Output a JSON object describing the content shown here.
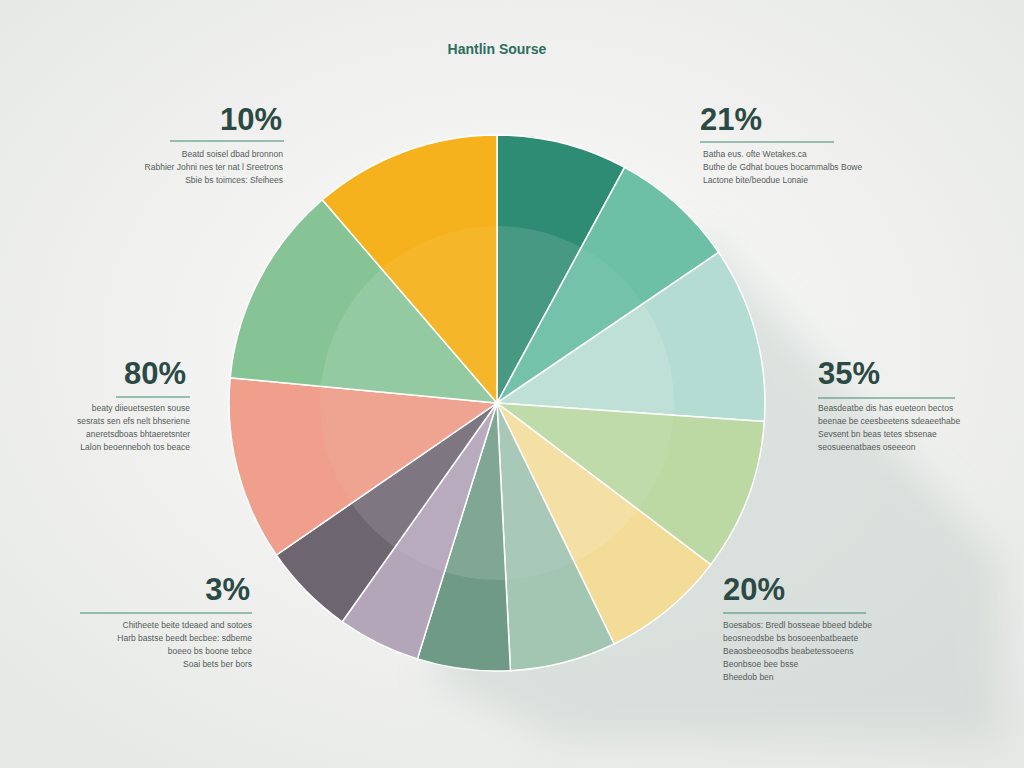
{
  "chart_data": {
    "type": "pie",
    "title": "Hantlin Sourse",
    "values": [
      7.9,
      7.6,
      10.6,
      9.2,
      7.5,
      6.4,
      5.6,
      5.0,
      5.6,
      11.1,
      12.2,
      11.3
    ],
    "colors": [
      "#2e8b74",
      "#6dbfa5",
      "#b5dcd2",
      "#bcd9a4",
      "#f3dc98",
      "#a3c6b3",
      "#6f9a86",
      "#b3a6b9",
      "#6d6570",
      "#ef9f8c",
      "#86c395",
      "#f6b21c"
    ],
    "annotations": [
      {
        "value": 10,
        "label": "10%",
        "lines": [
          "Beatd soisel dbad bronnon",
          "Rabhier Johni nes ter nat l Sreetrons",
          "Sbie bs toimces: Sfeihees"
        ]
      },
      {
        "value": 21,
        "label": "21%",
        "lines": [
          "Batha eus. ofte Wetakes.ca",
          "Buthe de Gdhat boues bocammalbs Bowe",
          "Lactone bite/beodue Lonaie"
        ]
      },
      {
        "value": 80,
        "label": "80%",
        "lines": [
          "beaty diieuetsesten souse",
          "sesrats sen efs nelt bhseriene",
          "aneretsdboas bhtaeretsnter",
          "Lalon beoenneboh tos beace"
        ]
      },
      {
        "value": 35,
        "label": "35%",
        "lines": [
          "Beasdeatbe dis has eueteon bectos",
          "beenae be ceesbeetens sdeaeethabe",
          "Sevsent bn beas tetes sbsenae",
          "seosueenatbaes oseeeon"
        ]
      },
      {
        "value": 3,
        "label": "3%",
        "lines": [
          "Chitheete beite tdeaed and sotoes",
          "Harb bastse beedt becbee: sdbeme",
          "boeeo bs boone tebce",
          "Soai bets ber bors"
        ]
      },
      {
        "value": 20,
        "label": "20%",
        "lines": [
          "Boesabos: Bredl bosseae bbeed bdebe",
          "beosneodsbe bs bosoeenbatbeaete",
          "Beaosbeeosodbs beabetessoeens",
          "Beonbsoe bee bsse",
          "Bheedob ben"
        ]
      }
    ]
  }
}
